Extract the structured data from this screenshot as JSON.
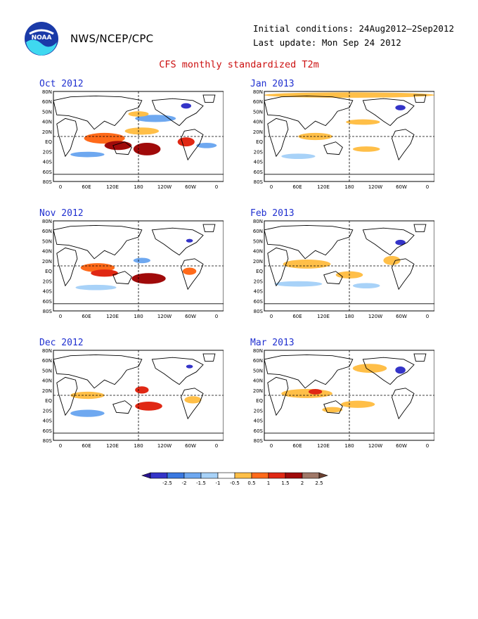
{
  "header": {
    "org": "NWS/NCEP/CPC",
    "initial_conditions": "Initial conditions: 24Aug2012–2Sep2012",
    "last_update": "Last update: Mon Sep 24 2012",
    "title": "CFS monthly standardized T2m"
  },
  "lat_labels": [
    "80N",
    "60N",
    "50N",
    "40N",
    "20N",
    "EQ",
    "20S",
    "40S",
    "60S",
    "80S"
  ],
  "lon_labels": [
    "0",
    "60E",
    "120E",
    "180",
    "120W",
    "60W",
    "0"
  ],
  "colors": {
    "title": "#cc1010",
    "panel_title": "#2030d0",
    "ocean": "#ffffff",
    "land_outline": "#000000",
    "dashed_grid": "#000000"
  },
  "panels": [
    {
      "id": "oct",
      "title": "Oct 2012",
      "column": "left",
      "row": 0
    },
    {
      "id": "jan",
      "title": "Jan 2013",
      "column": "right",
      "row": 0
    },
    {
      "id": "nov",
      "title": "Nov 2012",
      "column": "left",
      "row": 1
    },
    {
      "id": "feb",
      "title": "Feb 2013",
      "column": "right",
      "row": 1
    },
    {
      "id": "dec",
      "title": "Dec 2012",
      "column": "left",
      "row": 2
    },
    {
      "id": "mar",
      "title": "Mar 2013",
      "column": "right",
      "row": 2
    }
  ],
  "colorbar": {
    "labels": [
      "-2.5",
      "-2",
      "-1.5",
      "-1",
      "-0.5",
      "0.5",
      "1",
      "1.5",
      "2",
      "2.5"
    ],
    "colors": [
      "#2a1490",
      "#3434c8",
      "#3a78e0",
      "#6ea8f0",
      "#a8d2f8",
      "#ffffff",
      "#ffbf48",
      "#ff6a1a",
      "#e02814",
      "#a00a0a",
      "#a07868",
      "#6a4030"
    ]
  }
}
